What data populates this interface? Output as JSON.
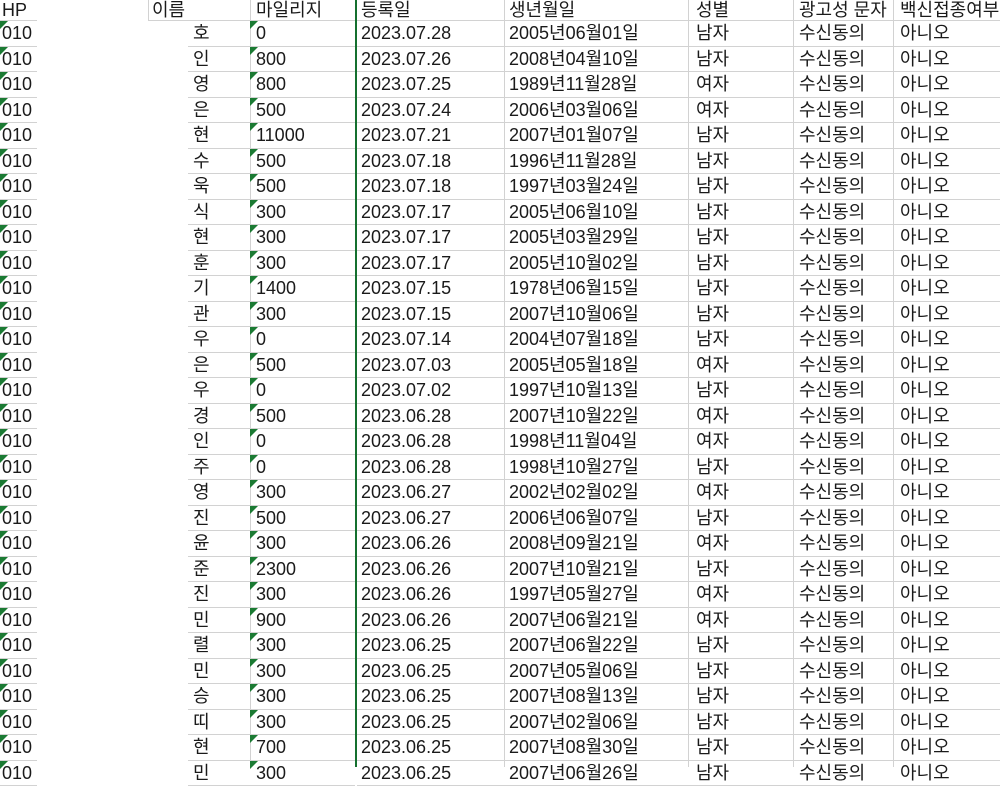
{
  "app": "spreadsheet-member-list",
  "colors": {
    "background": "#ffffff",
    "gridline": "#d2d2d2",
    "text": "#1a1a1a",
    "divider_green": "#15702f",
    "text_format_indicator_green": "#1b7a33"
  },
  "columns": [
    {
      "key": "hp",
      "label": "HP"
    },
    {
      "key": "name",
      "label": "이름"
    },
    {
      "key": "mileage",
      "label": "마일리지"
    },
    {
      "key": "reg_date",
      "label": "등록일"
    },
    {
      "key": "birth",
      "label": "생년월일"
    },
    {
      "key": "gender",
      "label": "성별"
    },
    {
      "key": "ad_sms",
      "label": "광고성 문자"
    },
    {
      "key": "vaccine",
      "label": "백신접종여부"
    }
  ],
  "text_format_flag_columns": [
    "hp",
    "mileage"
  ],
  "rows": [
    {
      "hp": "010",
      "name": "호",
      "mileage": "0",
      "reg_date": "2023.07.28",
      "birth": "2005년06월01일",
      "gender": "남자",
      "ad_sms": "수신동의",
      "vaccine": "아니오"
    },
    {
      "hp": "010",
      "name": "인",
      "mileage": "800",
      "reg_date": "2023.07.26",
      "birth": "2008년04월10일",
      "gender": "남자",
      "ad_sms": "수신동의",
      "vaccine": "아니오"
    },
    {
      "hp": "010",
      "name": "영",
      "mileage": "800",
      "reg_date": "2023.07.25",
      "birth": "1989년11월28일",
      "gender": "여자",
      "ad_sms": "수신동의",
      "vaccine": "아니오"
    },
    {
      "hp": "010",
      "name": "은",
      "mileage": "500",
      "reg_date": "2023.07.24",
      "birth": "2006년03월06일",
      "gender": "여자",
      "ad_sms": "수신동의",
      "vaccine": "아니오"
    },
    {
      "hp": "010",
      "name": "현",
      "mileage": "11000",
      "reg_date": "2023.07.21",
      "birth": "2007년01월07일",
      "gender": "남자",
      "ad_sms": "수신동의",
      "vaccine": "아니오"
    },
    {
      "hp": "010",
      "name": "수",
      "mileage": "500",
      "reg_date": "2023.07.18",
      "birth": "1996년11월28일",
      "gender": "남자",
      "ad_sms": "수신동의",
      "vaccine": "아니오"
    },
    {
      "hp": "010",
      "name": "욱",
      "mileage": "500",
      "reg_date": "2023.07.18",
      "birth": "1997년03월24일",
      "gender": "남자",
      "ad_sms": "수신동의",
      "vaccine": "아니오"
    },
    {
      "hp": "010",
      "name": "식",
      "mileage": "300",
      "reg_date": "2023.07.17",
      "birth": "2005년06월10일",
      "gender": "남자",
      "ad_sms": "수신동의",
      "vaccine": "아니오"
    },
    {
      "hp": "010",
      "name": "현",
      "mileage": "300",
      "reg_date": "2023.07.17",
      "birth": "2005년03월29일",
      "gender": "남자",
      "ad_sms": "수신동의",
      "vaccine": "아니오"
    },
    {
      "hp": "010",
      "name": "훈",
      "mileage": "300",
      "reg_date": "2023.07.17",
      "birth": "2005년10월02일",
      "gender": "남자",
      "ad_sms": "수신동의",
      "vaccine": "아니오"
    },
    {
      "hp": "010",
      "name": "기",
      "mileage": "1400",
      "reg_date": "2023.07.15",
      "birth": "1978년06월15일",
      "gender": "남자",
      "ad_sms": "수신동의",
      "vaccine": "아니오"
    },
    {
      "hp": "010",
      "name": "관",
      "mileage": "300",
      "reg_date": "2023.07.15",
      "birth": "2007년10월06일",
      "gender": "남자",
      "ad_sms": "수신동의",
      "vaccine": "아니오"
    },
    {
      "hp": "010",
      "name": "우",
      "mileage": "0",
      "reg_date": "2023.07.14",
      "birth": "2004년07월18일",
      "gender": "남자",
      "ad_sms": "수신동의",
      "vaccine": "아니오"
    },
    {
      "hp": "010",
      "name": "은",
      "mileage": "500",
      "reg_date": "2023.07.03",
      "birth": "2005년05월18일",
      "gender": "여자",
      "ad_sms": "수신동의",
      "vaccine": "아니오"
    },
    {
      "hp": "010",
      "name": "우",
      "mileage": "0",
      "reg_date": "2023.07.02",
      "birth": "1997년10월13일",
      "gender": "남자",
      "ad_sms": "수신동의",
      "vaccine": "아니오"
    },
    {
      "hp": "010",
      "name": "경",
      "mileage": "500",
      "reg_date": "2023.06.28",
      "birth": "2007년10월22일",
      "gender": "여자",
      "ad_sms": "수신동의",
      "vaccine": "아니오"
    },
    {
      "hp": "010",
      "name": "인",
      "mileage": "0",
      "reg_date": "2023.06.28",
      "birth": "1998년11월04일",
      "gender": "여자",
      "ad_sms": "수신동의",
      "vaccine": "아니오"
    },
    {
      "hp": "010",
      "name": "주",
      "mileage": "0",
      "reg_date": "2023.06.28",
      "birth": "1998년10월27일",
      "gender": "남자",
      "ad_sms": "수신동의",
      "vaccine": "아니오"
    },
    {
      "hp": "010",
      "name": "영",
      "mileage": "300",
      "reg_date": "2023.06.27",
      "birth": "2002년02월02일",
      "gender": "여자",
      "ad_sms": "수신동의",
      "vaccine": "아니오"
    },
    {
      "hp": "010",
      "name": "진",
      "mileage": "500",
      "reg_date": "2023.06.27",
      "birth": "2006년06월07일",
      "gender": "남자",
      "ad_sms": "수신동의",
      "vaccine": "아니오"
    },
    {
      "hp": "010",
      "name": "윤",
      "mileage": "300",
      "reg_date": "2023.06.26",
      "birth": "2008년09월21일",
      "gender": "여자",
      "ad_sms": "수신동의",
      "vaccine": "아니오"
    },
    {
      "hp": "010",
      "name": "준",
      "mileage": "2300",
      "reg_date": "2023.06.26",
      "birth": "2007년10월21일",
      "gender": "남자",
      "ad_sms": "수신동의",
      "vaccine": "아니오"
    },
    {
      "hp": "010",
      "name": "진",
      "mileage": "300",
      "reg_date": "2023.06.26",
      "birth": "1997년05월27일",
      "gender": "여자",
      "ad_sms": "수신동의",
      "vaccine": "아니오"
    },
    {
      "hp": "010",
      "name": "민",
      "mileage": "900",
      "reg_date": "2023.06.26",
      "birth": "2007년06월21일",
      "gender": "여자",
      "ad_sms": "수신동의",
      "vaccine": "아니오"
    },
    {
      "hp": "010",
      "name": "렬",
      "mileage": "300",
      "reg_date": "2023.06.25",
      "birth": "2007년06월22일",
      "gender": "남자",
      "ad_sms": "수신동의",
      "vaccine": "아니오"
    },
    {
      "hp": "010",
      "name": "민",
      "mileage": "300",
      "reg_date": "2023.06.25",
      "birth": "2007년05월06일",
      "gender": "남자",
      "ad_sms": "수신동의",
      "vaccine": "아니오"
    },
    {
      "hp": "010",
      "name": "승",
      "mileage": "300",
      "reg_date": "2023.06.25",
      "birth": "2007년08월13일",
      "gender": "남자",
      "ad_sms": "수신동의",
      "vaccine": "아니오"
    },
    {
      "hp": "010",
      "name": "띠",
      "mileage": "300",
      "reg_date": "2023.06.25",
      "birth": "2007년02월06일",
      "gender": "남자",
      "ad_sms": "수신동의",
      "vaccine": "아니오"
    },
    {
      "hp": "010",
      "name": "현",
      "mileage": "700",
      "reg_date": "2023.06.25",
      "birth": "2007년08월30일",
      "gender": "남자",
      "ad_sms": "수신동의",
      "vaccine": "아니오"
    },
    {
      "hp": "010",
      "name": "민",
      "mileage": "300",
      "reg_date": "2023.06.25",
      "birth": "2007년06월26일",
      "gender": "남자",
      "ad_sms": "수신동의",
      "vaccine": "아니오",
      "partial": true
    }
  ]
}
